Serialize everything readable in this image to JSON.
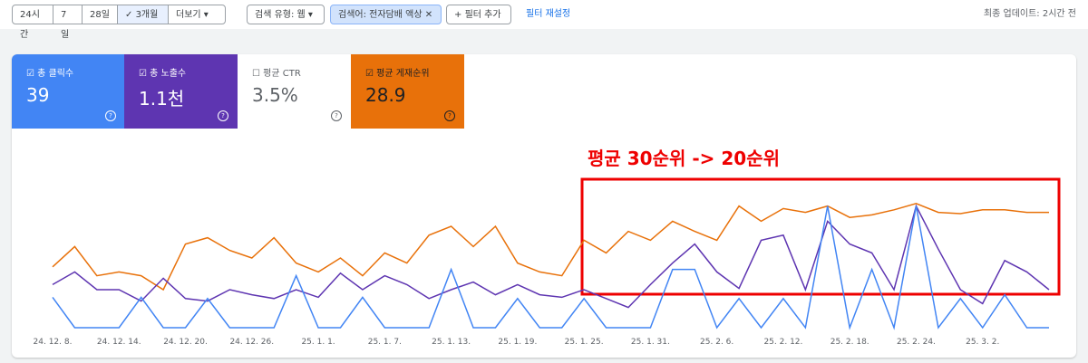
{
  "toolbar": {
    "ranges": [
      "24시간",
      "7일",
      "28일",
      "3개월",
      "더보기"
    ],
    "search_type": "검색 유형: 웹",
    "query_filter": "검색어: 전자담배 액상",
    "add_filter": "필터 추가",
    "reset": "필터 재설정",
    "updated": "최종 업데이트: 2시간 전"
  },
  "cards": [
    {
      "label": "총 클릭수",
      "value": "39",
      "color": "#4285f4"
    },
    {
      "label": "총 노출수",
      "value": "1.1천",
      "color": "#5e35b1"
    },
    {
      "label": "평균 CTR",
      "value": "3.5%",
      "color": "#ffffff"
    },
    {
      "label": "평균 게재순위",
      "value": "28.9",
      "color": "#e8710a"
    }
  ],
  "chart_data": {
    "type": "line",
    "annotation": "평균 30순위 -> 20순위",
    "categories": [
      "24. 12. 8.",
      null,
      null,
      "24. 12. 14.",
      null,
      null,
      "24. 12. 20.",
      null,
      null,
      "24. 12. 26.",
      null,
      null,
      "25. 1. 1.",
      null,
      null,
      "25. 1. 7.",
      null,
      null,
      "25. 1. 13.",
      null,
      null,
      "25. 1. 19.",
      null,
      null,
      "25. 1. 25.",
      null,
      null,
      "25. 1. 31.",
      null,
      null,
      "25. 2. 6.",
      null,
      null,
      "25. 2. 12.",
      null,
      null,
      "25. 2. 18.",
      null,
      null,
      "25. 2. 24.",
      null,
      null,
      "25. 3. 2.",
      null,
      null,
      null
    ],
    "ylim": [
      0,
      100
    ],
    "series": [
      {
        "color": "#e8710a",
        "values": [
          48,
          64,
          41,
          44,
          41,
          30,
          66,
          71,
          61,
          55,
          71,
          51,
          44,
          55,
          41,
          59,
          51,
          73,
          80,
          64,
          80,
          51,
          44,
          41,
          69,
          59,
          76,
          69,
          84,
          76,
          69,
          96,
          84,
          94,
          91,
          96,
          87,
          89,
          93,
          98,
          91,
          90,
          93,
          93,
          91,
          91
        ]
      },
      {
        "color": "#5e35b1",
        "values": [
          34,
          44,
          30,
          30,
          21,
          39,
          23,
          21,
          30,
          26,
          23,
          30,
          24,
          43,
          30,
          41,
          34,
          23,
          30,
          36,
          26,
          34,
          26,
          24,
          30,
          23,
          16,
          34,
          51,
          66,
          44,
          31,
          69,
          73,
          30,
          84,
          66,
          59,
          30,
          96,
          62,
          30,
          19,
          53,
          44,
          30
        ]
      },
      {
        "color": "#4285f4",
        "values": [
          24,
          0,
          0,
          0,
          24,
          0,
          0,
          23,
          0,
          0,
          0,
          41,
          0,
          0,
          24,
          0,
          0,
          0,
          46,
          0,
          0,
          23,
          0,
          0,
          23,
          0,
          0,
          0,
          46,
          46,
          0,
          23,
          0,
          23,
          0,
          96,
          0,
          46,
          0,
          96,
          0,
          23,
          0,
          26,
          0,
          0
        ]
      }
    ]
  }
}
